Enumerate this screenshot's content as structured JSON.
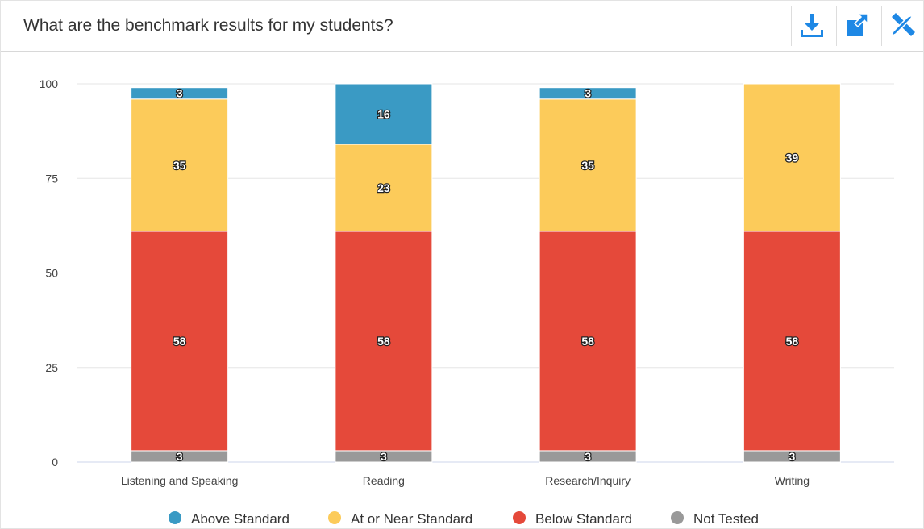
{
  "chart_data": {
    "type": "bar",
    "stacked": true,
    "title": "What are the benchmark results for my students?",
    "categories": [
      "Listening and Speaking",
      "Reading",
      "Research/Inquiry",
      "Writing"
    ],
    "series": [
      {
        "name": "Not Tested",
        "color": "#999999",
        "values": [
          3,
          3,
          3,
          3
        ]
      },
      {
        "name": "Below Standard",
        "color": "#e5493a",
        "values": [
          58,
          58,
          58,
          58
        ]
      },
      {
        "name": "At or Near Standard",
        "color": "#fccb5a",
        "values": [
          35,
          23,
          35,
          39
        ]
      },
      {
        "name": "Above Standard",
        "color": "#3a9ac4",
        "values": [
          3,
          16,
          3,
          null
        ]
      }
    ],
    "legend_order": [
      3,
      2,
      1,
      0
    ],
    "ylim": [
      0,
      100
    ],
    "yticks": [
      0,
      25,
      50,
      75,
      100
    ],
    "grid": true
  }
}
